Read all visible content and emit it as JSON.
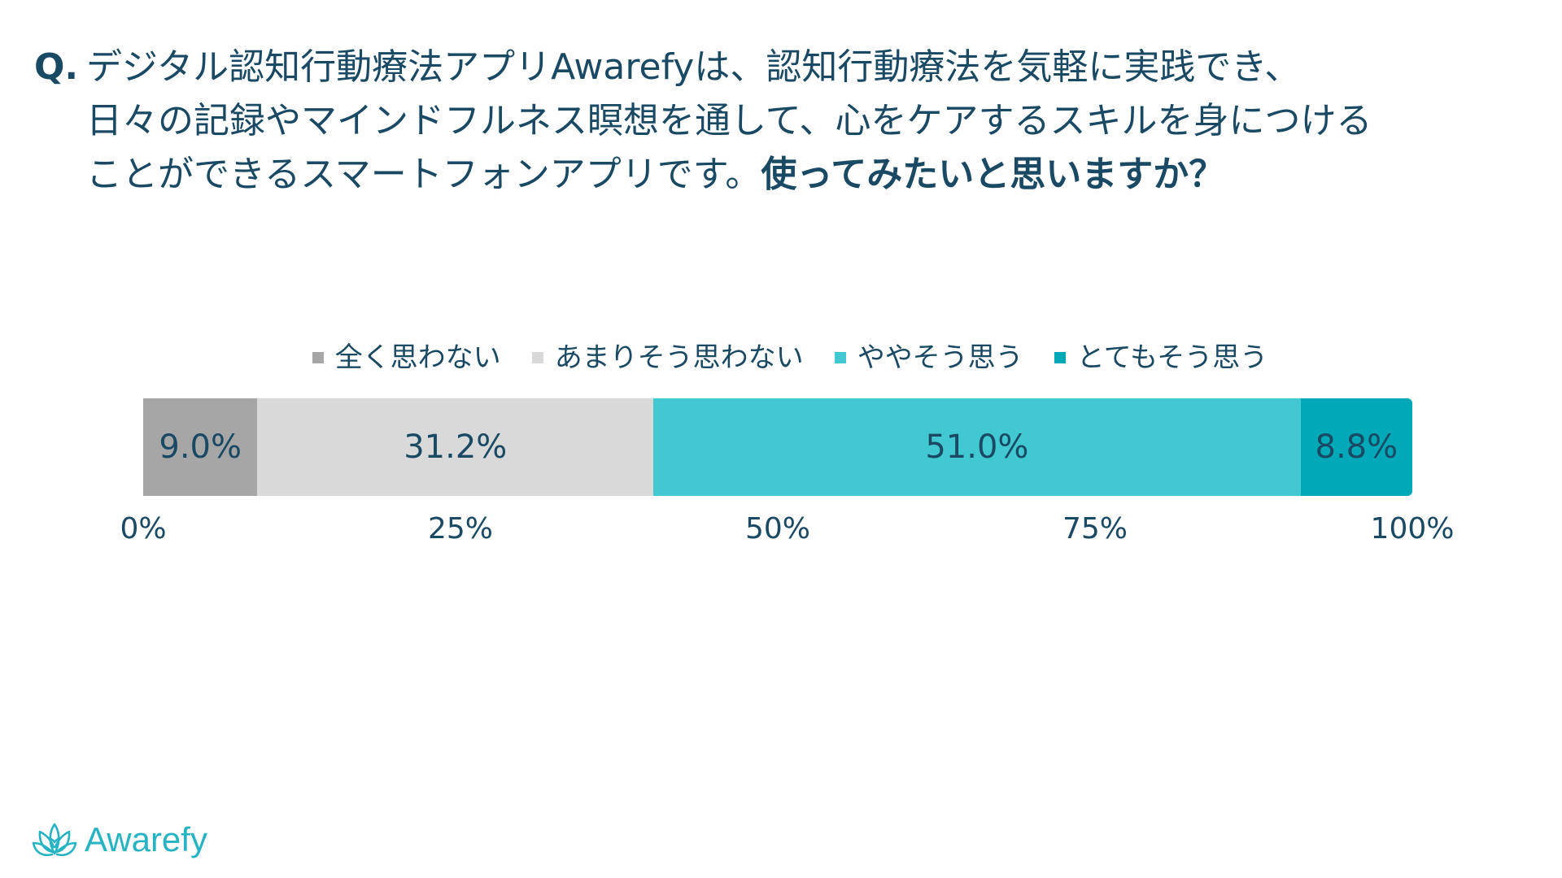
{
  "question": {
    "prefix": "Q.",
    "line1": "デジタル認知行動療法アプリAwarefyは、認知行動療法を気軽に実践でき、",
    "line2": "日々の記録やマインドフルネス瞑想を通して、心をケアするスキルを身につける",
    "line3_regular": "ことができるスマートフォンアプリです。",
    "line3_bold": "使ってみたいと思いますか？"
  },
  "chart_data": {
    "type": "bar",
    "orientation": "horizontal-stacked-100",
    "categories": [
      "全く思わない",
      "あまりそう思わない",
      "ややそう思う",
      "とてもそう思う"
    ],
    "values": [
      9.0,
      31.2,
      51.0,
      8.8
    ],
    "value_labels": [
      "9.0%",
      "31.2%",
      "51.0%",
      "8.8%"
    ],
    "colors": [
      "#a6a6a6",
      "#d9d9d9",
      "#41c8d0",
      "#00a9b8"
    ],
    "xlim": [
      0,
      100
    ],
    "ticks": [
      "0%",
      "25%",
      "50%",
      "75%",
      "100%"
    ],
    "tick_values": [
      0,
      25,
      50,
      75,
      100
    ],
    "legend_placement": "top",
    "grid": false
  },
  "logo": {
    "text": "Awarefy",
    "icon": "lotus-icon",
    "color": "#27b3c2"
  }
}
